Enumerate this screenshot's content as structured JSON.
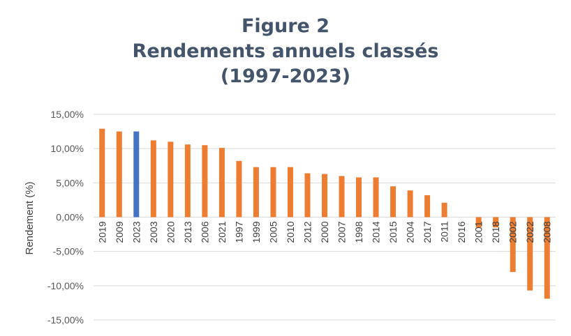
{
  "chart_data": {
    "type": "bar",
    "title": [
      "Figure 2",
      "Rendements annuels classés",
      "(1997-2023)"
    ],
    "ylabel": "Rendement (%)",
    "xlabel": "",
    "ylim": [
      -15,
      15
    ],
    "yticks": [
      15,
      10,
      5,
      0,
      -5,
      -10,
      -15
    ],
    "ytick_labels": [
      "15,00%",
      "10,00%",
      "5,00%",
      "0,00%",
      "-5,00%",
      "-10,00%",
      "-15,00%"
    ],
    "grid": true,
    "legend": "none",
    "colors": {
      "default": "#ED7D31",
      "highlight": "#4472C4"
    },
    "highlight_category": "2023",
    "categories": [
      "2019",
      "2009",
      "2023",
      "2003",
      "2020",
      "2013",
      "2006",
      "2021",
      "1997",
      "1999",
      "2005",
      "2010",
      "2012",
      "2000",
      "2007",
      "1998",
      "2014",
      "2015",
      "2004",
      "2017",
      "2011",
      "2016",
      "2001",
      "2018",
      "2002",
      "2022",
      "2008"
    ],
    "values": [
      12.9,
      12.5,
      12.5,
      11.2,
      11.0,
      10.6,
      10.5,
      10.1,
      8.2,
      7.3,
      7.3,
      7.3,
      6.4,
      6.3,
      6.0,
      5.8,
      5.8,
      4.5,
      3.9,
      3.2,
      2.1,
      0.0,
      -1.5,
      -1.5,
      -8.0,
      -10.7,
      -11.9
    ]
  }
}
